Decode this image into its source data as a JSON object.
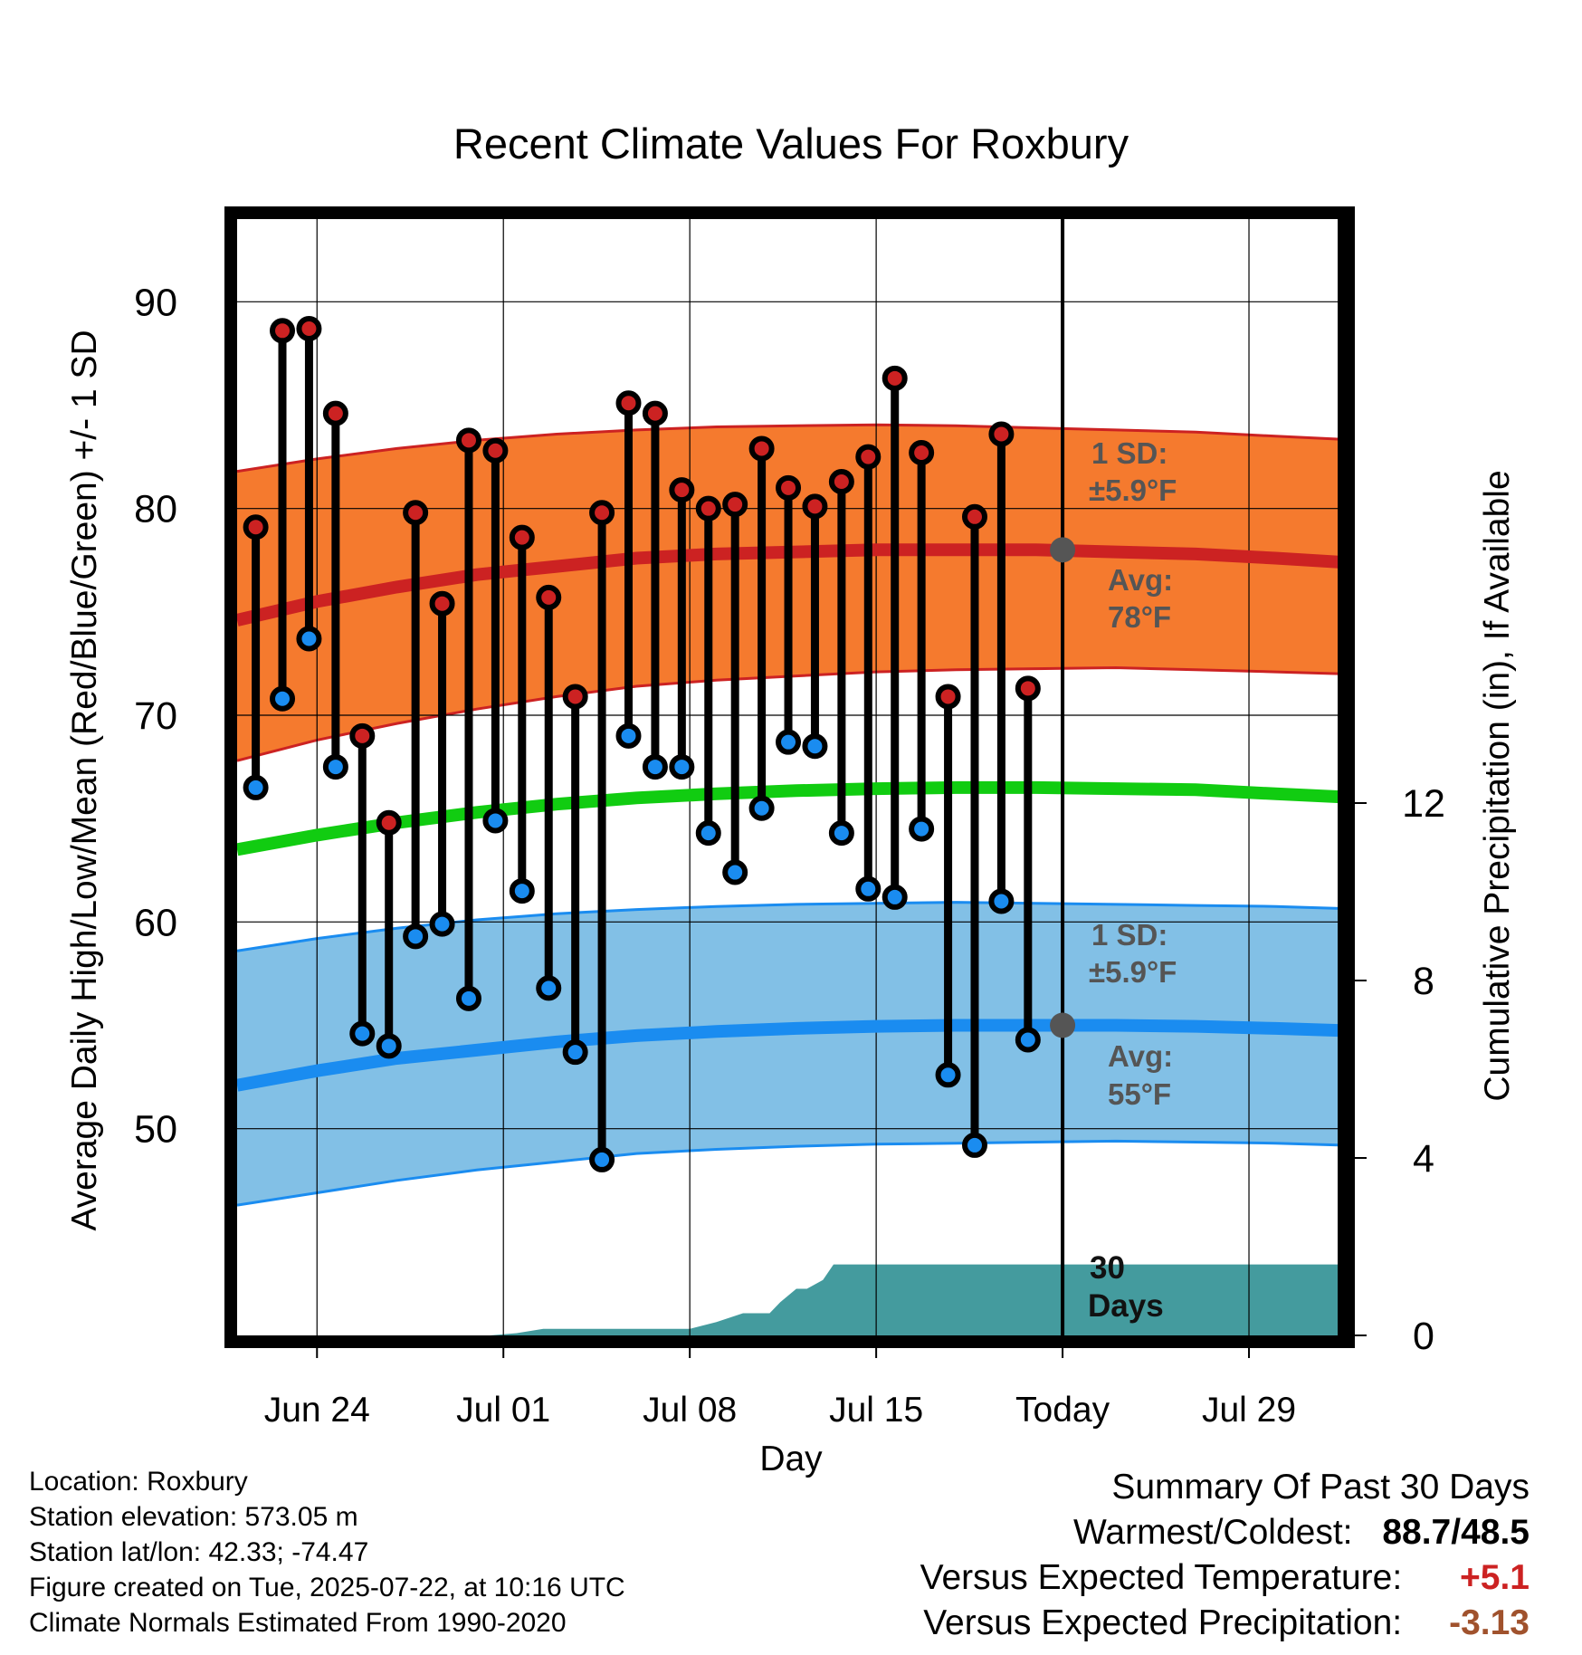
{
  "chart_data": {
    "type": "line",
    "title": "Recent Climate Values For Roxbury",
    "xlabel": "Day",
    "ylabel": "Average Daily High/Low/Mean (Red/Blue/Green) +/- 1 SD",
    "y2label": "Cumulative Precipitation (in), If Available",
    "ylim": [
      40,
      94
    ],
    "y2lim": [
      0,
      18.7
    ],
    "yticks": [
      "50",
      "60",
      "70",
      "80",
      "90"
    ],
    "y2ticks": [
      "0",
      "4",
      "8",
      "12"
    ],
    "xticks": [
      {
        "day": 3,
        "label": "Jun 24"
      },
      {
        "day": 10,
        "label": "Jul 01"
      },
      {
        "day": 17,
        "label": "Jul 08"
      },
      {
        "day": 24,
        "label": "Jul 15"
      },
      {
        "day": 31,
        "label": "Today"
      },
      {
        "day": 38,
        "label": "Jul 29"
      }
    ],
    "xlim": [
      0,
      41.5
    ],
    "grid": true,
    "today_day": 31,
    "colors": {
      "high_band": "#F57A2E",
      "high_line": "#CC2222",
      "mean_line": "#11CC11",
      "low_band": "#82C0E6",
      "low_line": "#1A8CF0",
      "low_band_edge": "#1A8CF0",
      "precip": "#449B9E",
      "annotation": "#555555",
      "high_marker": "#CC2222",
      "low_marker": "#1A8CF0"
    },
    "normals": {
      "days": [
        0,
        3,
        6,
        9,
        12,
        15,
        18,
        21,
        24,
        27,
        30,
        33,
        36,
        39,
        41.5
      ],
      "avg_high": [
        74.6,
        75.5,
        76.2,
        76.8,
        77.2,
        77.6,
        77.8,
        77.9,
        78.0,
        78.0,
        78.0,
        77.9,
        77.8,
        77.6,
        77.4
      ],
      "high_sd_upper": [
        81.8,
        82.4,
        82.9,
        83.3,
        83.6,
        83.8,
        83.95,
        84.0,
        84.05,
        84.0,
        83.9,
        83.8,
        83.7,
        83.5,
        83.35
      ],
      "high_sd_lower": [
        67.8,
        68.8,
        69.6,
        70.3,
        70.9,
        71.4,
        71.7,
        71.9,
        72.1,
        72.2,
        72.25,
        72.3,
        72.2,
        72.1,
        72.0
      ],
      "avg_mean": [
        63.5,
        64.2,
        64.8,
        65.3,
        65.7,
        66.0,
        66.2,
        66.35,
        66.45,
        66.5,
        66.5,
        66.45,
        66.4,
        66.2,
        66.05
      ],
      "avg_low": [
        52.1,
        52.8,
        53.4,
        53.8,
        54.2,
        54.5,
        54.7,
        54.85,
        54.95,
        55.0,
        55.0,
        55.0,
        54.95,
        54.85,
        54.75
      ],
      "low_sd_upper": [
        58.6,
        59.2,
        59.7,
        60.1,
        60.4,
        60.6,
        60.75,
        60.85,
        60.9,
        60.95,
        60.9,
        60.85,
        60.8,
        60.75,
        60.65
      ],
      "low_sd_lower": [
        46.3,
        46.9,
        47.5,
        48.0,
        48.4,
        48.8,
        49.0,
        49.15,
        49.25,
        49.3,
        49.35,
        49.4,
        49.35,
        49.3,
        49.2
      ]
    },
    "observed": [
      {
        "day": 0.7,
        "high": 79.1,
        "low": 66.5
      },
      {
        "day": 1.7,
        "high": 88.6,
        "low": 70.8
      },
      {
        "day": 2.7,
        "high": 88.7,
        "low": 73.7
      },
      {
        "day": 3.7,
        "high": 84.6,
        "low": 67.5
      },
      {
        "day": 4.7,
        "high": 69.0,
        "low": 54.6
      },
      {
        "day": 5.7,
        "high": 64.8,
        "low": 54.0
      },
      {
        "day": 6.7,
        "high": 79.8,
        "low": 59.3
      },
      {
        "day": 7.7,
        "high": 75.4,
        "low": 59.9
      },
      {
        "day": 8.7,
        "high": 83.3,
        "low": 56.3
      },
      {
        "day": 9.7,
        "high": 82.8,
        "low": 64.9
      },
      {
        "day": 10.7,
        "high": 78.6,
        "low": 61.5
      },
      {
        "day": 11.7,
        "high": 75.7,
        "low": 56.8
      },
      {
        "day": 12.7,
        "high": 70.9,
        "low": 53.7
      },
      {
        "day": 13.7,
        "high": 79.8,
        "low": 48.5
      },
      {
        "day": 14.7,
        "high": 85.1,
        "low": 69.0
      },
      {
        "day": 15.7,
        "high": 84.6,
        "low": 67.5
      },
      {
        "day": 16.7,
        "high": 80.9,
        "low": 67.5
      },
      {
        "day": 17.7,
        "high": 80.0,
        "low": 64.3
      },
      {
        "day": 18.7,
        "high": 80.2,
        "low": 62.4
      },
      {
        "day": 19.7,
        "high": 82.9,
        "low": 65.5
      },
      {
        "day": 20.7,
        "high": 81.0,
        "low": 68.7
      },
      {
        "day": 21.7,
        "high": 80.1,
        "low": 68.5
      },
      {
        "day": 22.7,
        "high": 81.3,
        "low": 64.3
      },
      {
        "day": 23.7,
        "high": 82.5,
        "low": 61.6
      },
      {
        "day": 24.7,
        "high": 86.3,
        "low": 61.2
      },
      {
        "day": 25.7,
        "high": 82.7,
        "low": 64.5
      },
      {
        "day": 26.7,
        "high": 70.9,
        "low": 52.6
      },
      {
        "day": 27.7,
        "high": 79.6,
        "low": 49.2
      },
      {
        "day": 28.7,
        "high": 83.6,
        "low": 61.0
      },
      {
        "day": 29.7,
        "high": 71.3,
        "low": 54.3
      }
    ],
    "precip": {
      "days": [
        0,
        9.5,
        10.5,
        11.5,
        17,
        18,
        19,
        20,
        20.4,
        21,
        21.4,
        22,
        22.4,
        41.5
      ],
      "values": [
        0,
        0,
        0.05,
        0.15,
        0.15,
        0.3,
        0.5,
        0.5,
        0.75,
        1.05,
        1.05,
        1.25,
        1.6,
        1.6
      ]
    },
    "today_markers": {
      "high": 78.0,
      "low": 55.0
    },
    "annotations": {
      "high_sd_line1": "1 SD:",
      "high_sd_line2": "±5.9°F",
      "high_avg_line1": "Avg:",
      "high_avg_line2": "78°F",
      "low_sd_line1": "1 SD:",
      "low_sd_line2": "±5.9°F",
      "low_avg_line1": "Avg:",
      "low_avg_line2": "55°F",
      "days_line1": "30",
      "days_line2": "Days"
    }
  },
  "info": {
    "location": "Location: Roxbury",
    "elevation": "Station elevation: 573.05 m",
    "latlon": "Station lat/lon: 42.33; -74.47",
    "created": "Figure created on Tue, 2025-07-22, at 10:16 UTC",
    "normals": "Climate Normals Estimated From 1990-2020"
  },
  "summary": {
    "title": "Summary Of Past 30 Days",
    "warm_cold_label": "Warmest/Coldest:",
    "warm_cold_value": "88.7/48.5",
    "temp_label": "Versus Expected Temperature:",
    "temp_value": "+5.1",
    "temp_color": "#CC2222",
    "precip_label": "Versus Expected Precipitation:",
    "precip_value": "-3.13",
    "precip_color": "#A0522D"
  }
}
